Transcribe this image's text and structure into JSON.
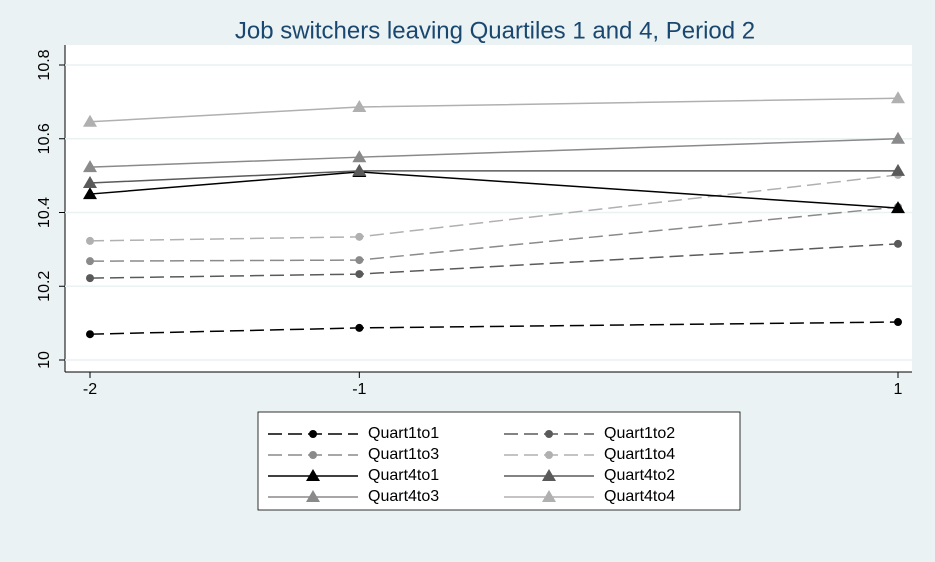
{
  "chart_data": {
    "type": "line",
    "title": "Job switchers leaving Quartiles 1 and 4, Period 2",
    "x": [
      -2,
      -1,
      1
    ],
    "xlim": [
      -2,
      1
    ],
    "xticks": [
      -2,
      -1,
      1
    ],
    "ylim": [
      10,
      10.8
    ],
    "yticks": [
      10,
      10.2,
      10.4,
      10.6,
      10.8
    ],
    "grid": true,
    "legend": "bottom",
    "series": [
      {
        "name": "Quart1to1",
        "color": "#000000",
        "dash": true,
        "marker": "circle",
        "values": [
          10.07,
          10.087,
          10.103
        ]
      },
      {
        "name": "Quart1to2",
        "color": "#5a5a5a",
        "dash": true,
        "marker": "circle",
        "values": [
          10.222,
          10.233,
          10.315
        ]
      },
      {
        "name": "Quart1to3",
        "color": "#8a8a8a",
        "dash": true,
        "marker": "circle",
        "values": [
          10.268,
          10.271,
          10.415
        ]
      },
      {
        "name": "Quart1to4",
        "color": "#b0b0b0",
        "dash": true,
        "marker": "circle",
        "values": [
          10.323,
          10.334,
          10.502
        ]
      },
      {
        "name": "Quart4to1",
        "color": "#000000",
        "dash": false,
        "marker": "triangle",
        "values": [
          10.45,
          10.51,
          10.412
        ]
      },
      {
        "name": "Quart4to2",
        "color": "#5a5a5a",
        "dash": false,
        "marker": "triangle",
        "values": [
          10.48,
          10.513,
          10.513
        ]
      },
      {
        "name": "Quart4to3",
        "color": "#8a8a8a",
        "dash": false,
        "marker": "triangle",
        "values": [
          10.523,
          10.55,
          10.6
        ]
      },
      {
        "name": "Quart4to4",
        "color": "#b0b0b0",
        "dash": false,
        "marker": "triangle",
        "values": [
          10.646,
          10.686,
          10.71
        ]
      }
    ]
  }
}
